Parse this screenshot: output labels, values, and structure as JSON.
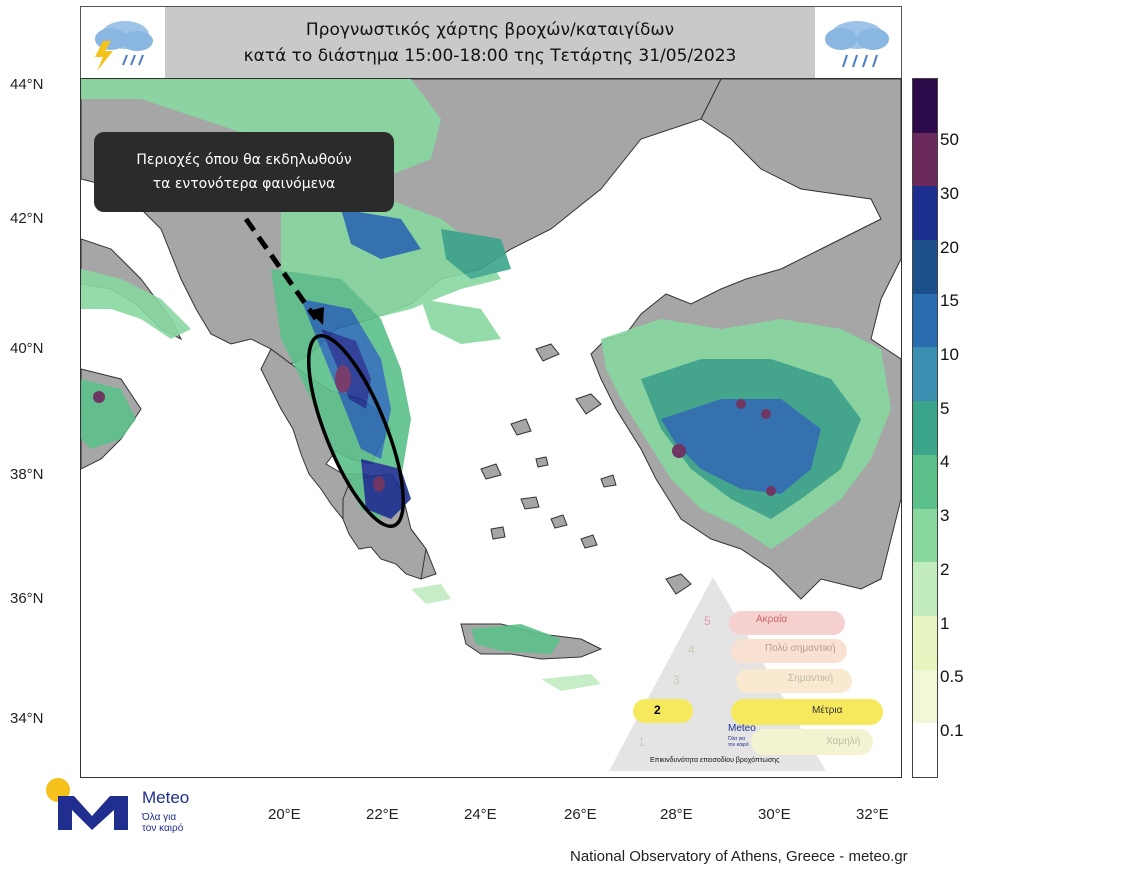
{
  "header": {
    "title_line1": "Προγνωστικός χάρτης βροχών/καταιγίδων",
    "title_line2": "κατά το διάστημα 15:00-18:00 της Τετάρτης 31/05/2023",
    "left_icon": "storm-cloud-icon",
    "right_icon": "rain-cloud-icon"
  },
  "callout": {
    "line1": "Περιοχές όπου θα εκδηλωθούν",
    "line2": "τα εντονότερα φαινόμενα"
  },
  "lat_labels": [
    "44°N",
    "42°N",
    "40°N",
    "38°N",
    "36°N",
    "34°N"
  ],
  "lon_labels": [
    "20°E",
    "22°E",
    "24°E",
    "26°E",
    "28°E",
    "30°E",
    "32°E"
  ],
  "colorbar": {
    "labels": [
      "50",
      "30",
      "20",
      "15",
      "10",
      "5",
      "4",
      "3",
      "2",
      "1",
      "0.5",
      "0.1"
    ],
    "colors": [
      "#2d0a4a",
      "#6a2a5c",
      "#1c2f8f",
      "#1a4f8a",
      "#2a6cb0",
      "#3a8fb0",
      "#3aa58a",
      "#5cc08a",
      "#88d8a0",
      "#c2ecc0",
      "#e8f5c0",
      "#f0f8d8",
      "#ffffff"
    ]
  },
  "risk_pyramid": {
    "levels": [
      {
        "num": "5",
        "label": "Ακραία"
      },
      {
        "num": "4",
        "label": "Πολύ σημαντική"
      },
      {
        "num": "3",
        "label": "Σημαντική"
      },
      {
        "num": "2",
        "label": "Μέτρια"
      },
      {
        "num": "1",
        "label": "Χαμηλή"
      }
    ],
    "logo_text": "Meteo",
    "logo_sub1": "Όλα για",
    "logo_sub2": "τον καιρό",
    "caption": "Επικινδυνότητα επεισοδίου βροχόπτωσης",
    "active_level": "2"
  },
  "logo": {
    "name": "Meteo",
    "tagline1": "Όλα για",
    "tagline2": "τον καιρό"
  },
  "credit": "National Observatory of Athens, Greece - meteo.gr"
}
